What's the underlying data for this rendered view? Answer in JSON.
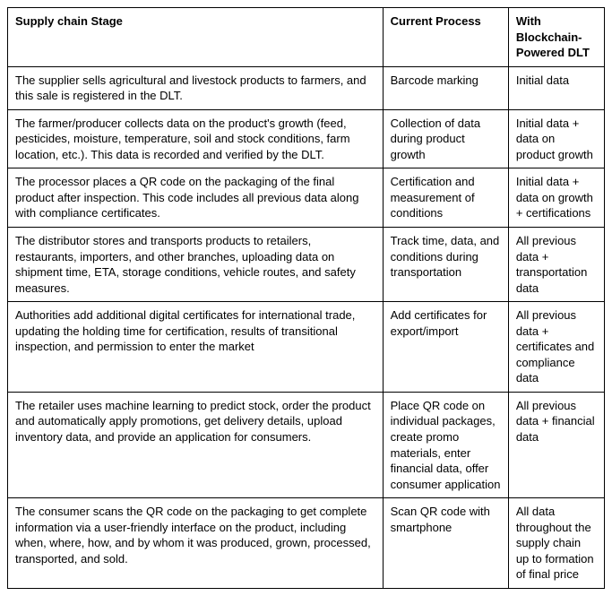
{
  "table": {
    "columns": [
      "Supply chain Stage",
      "Current Process",
      "With Blockchain-Powered DLT"
    ],
    "rows": [
      {
        "stage": "The supplier sells agricultural and livestock products to farmers, and this sale is registered in the DLT.",
        "current": "Barcode marking",
        "dlt": "Initial data"
      },
      {
        "stage": "The farmer/producer collects data on the product's growth (feed, pesticides, moisture, temperature, soil and stock conditions, farm location, etc.). This data is recorded and verified by the DLT.",
        "current": "Collection of data during product growth",
        "dlt": "Initial data + data on product growth"
      },
      {
        "stage": "The processor places a QR code on the packaging of the final product after inspection. This code includes all previous data along with compliance certificates.",
        "current": "Certification and measurement of conditions",
        "dlt": "Initial data + data on growth + certifications"
      },
      {
        "stage": "The distributor stores and transports products to retailers, restaurants, importers, and other branches, uploading data on shipment time, ETA, storage conditions, vehicle routes, and safety measures.",
        "current": "Track time, data, and conditions during transportation",
        "dlt": "All previous data + transportation data"
      },
      {
        "stage": "Authorities add additional digital certificates for international trade, updating the holding time for certification, results of transitional inspection, and permission to enter the market",
        "current": "Add certificates for export/import",
        "dlt": "All previous data + certificates and compliance data"
      },
      {
        "stage": "The retailer uses machine learning to predict stock, order the product and automatically apply promotions, get delivery details, upload inventory data, and provide an application for consumers.",
        "current": "Place QR code on individual packages, create promo materials, enter financial data, offer consumer application",
        "dlt": "All previous data + financial data"
      },
      {
        "stage": "The consumer scans the QR code on the packaging to get complete information via a user-friendly interface on the product, including when, where, how, and by whom it was produced, grown, processed, transported, and sold.",
        "current": "Scan QR code with smartphone",
        "dlt": "All data throughout the supply chain up to formation of final price"
      }
    ]
  }
}
